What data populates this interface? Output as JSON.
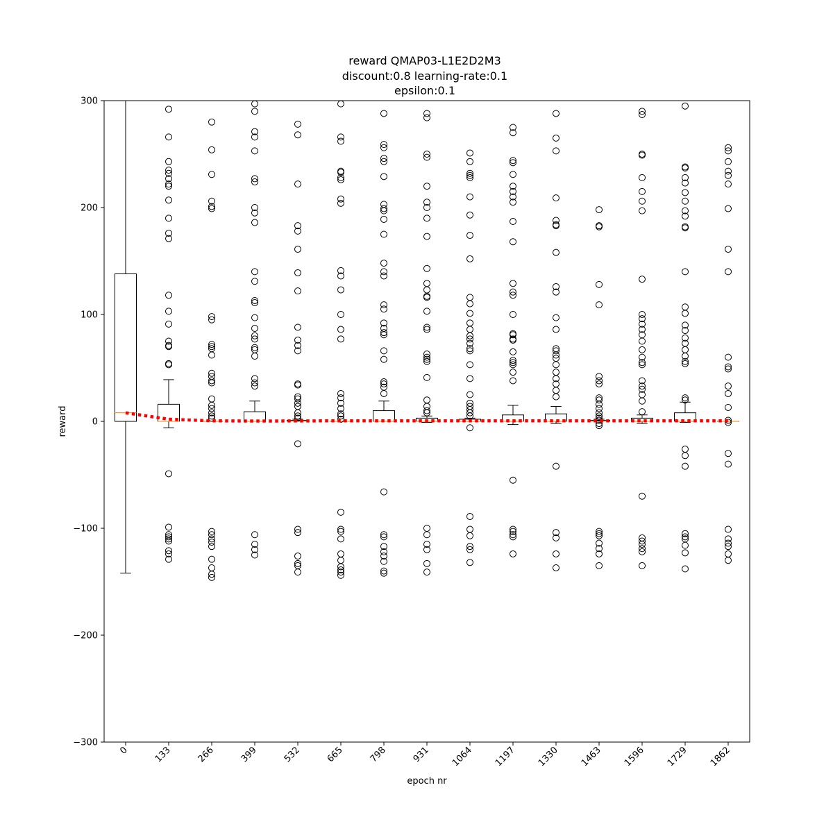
{
  "chart_data": {
    "type": "box",
    "title_lines": [
      "reward QMAP03-L1E2D2M3",
      "discount:0.8 learning-rate:0.1",
      "epsilon:0.1"
    ],
    "xlabel": "epoch nr",
    "ylabel": "reward",
    "ylim": [
      -300,
      300
    ],
    "yticks": [
      -300,
      -200,
      -100,
      0,
      100,
      200,
      300
    ],
    "categories": [
      "0",
      "133",
      "266",
      "399",
      "532",
      "665",
      "798",
      "931",
      "1064",
      "1197",
      "1330",
      "1463",
      "1596",
      "1729",
      "1862"
    ],
    "colors": {
      "box": "#000000",
      "median": "#ff7f0e",
      "mean_line": "#ff0000",
      "flier": "#000000"
    },
    "boxes": [
      {
        "q1": 0,
        "median": 8,
        "q3": 138,
        "whisker_low": -142,
        "whisker_high": 300,
        "fliers": []
      },
      {
        "q1": 0,
        "median": 0,
        "q3": 16,
        "whisker_low": -6,
        "whisker_high": 39,
        "fliers": [
          292,
          266,
          243,
          235,
          232,
          227,
          222,
          220,
          207,
          190,
          176,
          171,
          118,
          103,
          91,
          75,
          71,
          70,
          54,
          53,
          -49,
          -99,
          -106,
          -108,
          -110,
          -112,
          -121,
          -124,
          -129
        ]
      },
      {
        "q1": 0,
        "median": 0,
        "q3": 0,
        "whisker_low": 0,
        "whisker_high": 0,
        "fliers": [
          280,
          254,
          231,
          206,
          201,
          199,
          98,
          95,
          72,
          70,
          68,
          62,
          45,
          42,
          38,
          36,
          21,
          15,
          12,
          8,
          5,
          3,
          -103,
          -106,
          -110,
          -113,
          -117,
          -129,
          -137,
          -143,
          -146
        ]
      },
      {
        "q1": 0,
        "median": 0,
        "q3": 9,
        "whisker_low": 0,
        "whisker_high": 19,
        "fliers": [
          297,
          290,
          271,
          266,
          253,
          227,
          224,
          200,
          195,
          186,
          140,
          131,
          113,
          111,
          97,
          87,
          80,
          77,
          69,
          67,
          61,
          40,
          36,
          33,
          -106,
          -115,
          -120,
          -125
        ]
      },
      {
        "q1": 0,
        "median": 0,
        "q3": 1,
        "whisker_low": 0,
        "whisker_high": 2,
        "fliers": [
          278,
          268,
          222,
          183,
          178,
          161,
          139,
          122,
          88,
          76,
          71,
          66,
          35,
          34,
          23,
          21,
          17,
          14,
          8,
          5,
          3,
          -21,
          -101,
          -104,
          -126,
          -133,
          -135,
          -141
        ]
      },
      {
        "q1": 0,
        "median": 0,
        "q3": 0,
        "whisker_low": 0,
        "whisker_high": 0,
        "fliers": [
          297,
          266,
          262,
          234,
          233,
          228,
          226,
          208,
          204,
          141,
          136,
          123,
          100,
          86,
          77,
          26,
          22,
          17,
          12,
          7,
          5,
          2,
          -85,
          -101,
          -103,
          -110,
          -124,
          -130,
          -136,
          -139,
          -141,
          -144
        ]
      },
      {
        "q1": 0,
        "median": 0,
        "q3": 10,
        "whisker_low": 0,
        "whisker_high": 19,
        "fliers": [
          288,
          259,
          256,
          246,
          243,
          229,
          203,
          199,
          197,
          189,
          175,
          148,
          140,
          136,
          109,
          105,
          92,
          87,
          83,
          81,
          66,
          58,
          37,
          35,
          32,
          26,
          -66,
          -106,
          -108,
          -117,
          -122,
          -126,
          -131,
          -140,
          -142
        ]
      },
      {
        "q1": 0,
        "median": 0,
        "q3": 3,
        "whisker_low": -1,
        "whisker_high": 5,
        "fliers": [
          288,
          284,
          250,
          247,
          220,
          205,
          200,
          190,
          173,
          143,
          129,
          123,
          117,
          116,
          103,
          88,
          86,
          63,
          60,
          58,
          56,
          41,
          20,
          14,
          10,
          8,
          -100,
          -106,
          -115,
          -120,
          -133,
          -141
        ]
      },
      {
        "q1": 0,
        "median": 0,
        "q3": 2,
        "whisker_low": 0,
        "whisker_high": 3,
        "fliers": [
          251,
          243,
          232,
          230,
          228,
          210,
          193,
          174,
          152,
          116,
          110,
          101,
          92,
          86,
          80,
          77,
          73,
          68,
          66,
          53,
          40,
          25,
          17,
          14,
          11,
          8,
          5,
          -6,
          -89,
          -101,
          -107,
          -117,
          -120,
          -132
        ]
      },
      {
        "q1": 0,
        "median": 0,
        "q3": 6,
        "whisker_low": -3,
        "whisker_high": 15,
        "fliers": [
          275,
          270,
          244,
          242,
          231,
          220,
          215,
          210,
          205,
          187,
          168,
          129,
          121,
          118,
          100,
          82,
          81,
          77,
          76,
          65,
          57,
          55,
          53,
          46,
          38,
          -55,
          -101,
          -103,
          -106,
          -108,
          -124
        ]
      },
      {
        "q1": 0,
        "median": 0,
        "q3": 7,
        "whisker_low": -2,
        "whisker_high": 14,
        "fliers": [
          288,
          265,
          253,
          209,
          188,
          184,
          183,
          158,
          126,
          121,
          97,
          86,
          68,
          66,
          62,
          59,
          53,
          46,
          40,
          35,
          29,
          23,
          -42,
          -104,
          -109,
          -124,
          -137
        ]
      },
      {
        "q1": 0,
        "median": 0,
        "q3": 1,
        "whisker_low": 0,
        "whisker_high": 2,
        "fliers": [
          198,
          183,
          182,
          128,
          109,
          42,
          38,
          35,
          22,
          20,
          16,
          12,
          8,
          5,
          3,
          1,
          -2,
          -4,
          -103,
          -105,
          -107,
          -114,
          -119,
          -124,
          -135
        ]
      },
      {
        "q1": 0,
        "median": 0,
        "q3": 3,
        "whisker_low": -2,
        "whisker_high": 6,
        "fliers": [
          290,
          287,
          250,
          249,
          228,
          215,
          206,
          197,
          133,
          100,
          96,
          91,
          86,
          81,
          75,
          67,
          60,
          55,
          53,
          38,
          33,
          30,
          25,
          19,
          9,
          -70,
          -109,
          -112,
          -115,
          -119,
          -122,
          -135
        ]
      },
      {
        "q1": 0,
        "median": 0,
        "q3": 8,
        "whisker_low": -1,
        "whisker_high": 18,
        "fliers": [
          295,
          238,
          237,
          228,
          223,
          214,
          206,
          197,
          192,
          182,
          181,
          140,
          107,
          101,
          90,
          85,
          78,
          73,
          67,
          61,
          56,
          54,
          22,
          20,
          -26,
          -32,
          -42,
          -105,
          -108,
          -110,
          -116,
          -123,
          -138
        ]
      },
      {
        "q1": 0,
        "median": 0,
        "q3": 0,
        "whisker_low": 0,
        "whisker_high": 0,
        "fliers": [
          256,
          253,
          243,
          234,
          230,
          222,
          199,
          161,
          140,
          60,
          51,
          49,
          33,
          26,
          13,
          1,
          -1,
          -30,
          -40,
          -101,
          -110,
          -114,
          -117,
          -124,
          -130
        ]
      }
    ],
    "mean_line": [
      8,
      2,
      0.5,
      0.3,
      0.4,
      0.5,
      0.5,
      0.5,
      0.5,
      0.5,
      0.5,
      0.5,
      0.5,
      0.5,
      0.5
    ]
  }
}
